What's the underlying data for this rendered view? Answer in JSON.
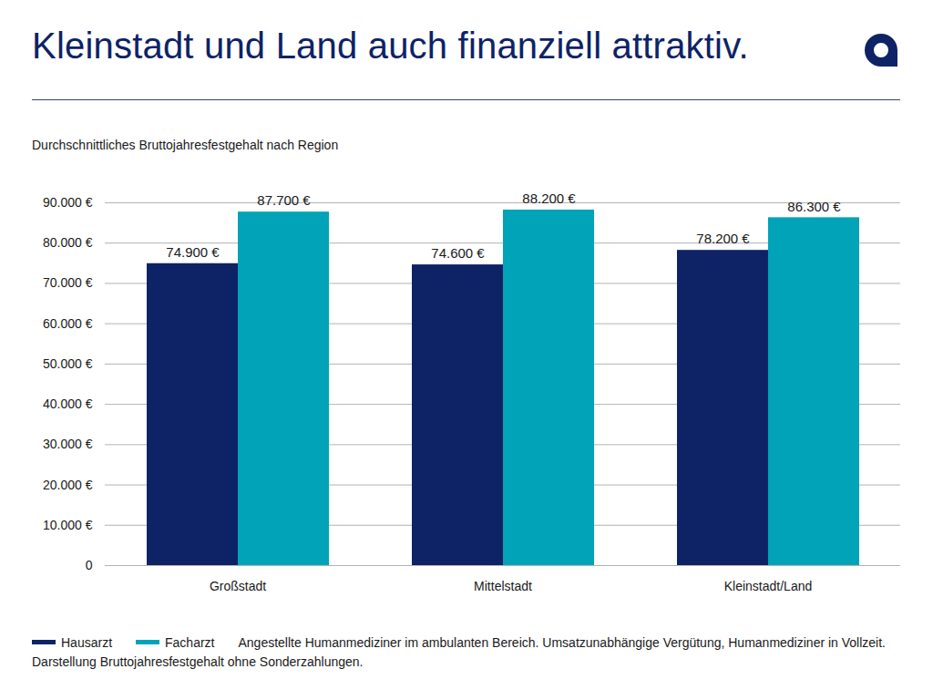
{
  "chart_data": {
    "type": "bar",
    "title": "Kleinstadt und Land auch finanziell attraktiv.",
    "subtitle": "Durchschnittliches Bruttojahresfestgehalt nach Region",
    "caption": "Angestellte Humanmediziner im ambulanten Bereich. Umsatzunabhängige Vergütung, Humanmediziner in Vollzeit. Darstellung Bruttojahresfestgehalt ohne Sonderzahlungen.",
    "categories": [
      "Großstadt",
      "Mittelstadt",
      "Kleinstadt/Land"
    ],
    "series": [
      {
        "name": "Hausarzt",
        "color": "#0d2366",
        "values": [
          74900,
          74600,
          78200
        ],
        "value_labels": [
          "74.900 €",
          "74.600 €",
          "78.200 €"
        ]
      },
      {
        "name": "Facharzt",
        "color": "#00a3b7",
        "values": [
          87700,
          88200,
          86300
        ],
        "value_labels": [
          "87.700 €",
          "88.200 €",
          "86.300 €"
        ]
      }
    ],
    "ylim": [
      0,
      90000
    ],
    "yticks": [
      0,
      {
        "value": 10000,
        "label": "10.000 €"
      },
      {
        "value": 20000,
        "label": "20.000 €"
      },
      {
        "value": 30000,
        "label": "30.000 €"
      },
      {
        "value": 40000,
        "label": "40.000 €"
      },
      {
        "value": 50000,
        "label": "50.000 €"
      },
      {
        "value": 60000,
        "label": "60.000 €"
      },
      {
        "value": 70000,
        "label": "70.000 €"
      },
      {
        "value": 80000,
        "label": "80.000 €"
      },
      {
        "value": 90000,
        "label": "90.000 €"
      }
    ],
    "grid": true,
    "data_labels": true,
    "legend": "bottom"
  }
}
